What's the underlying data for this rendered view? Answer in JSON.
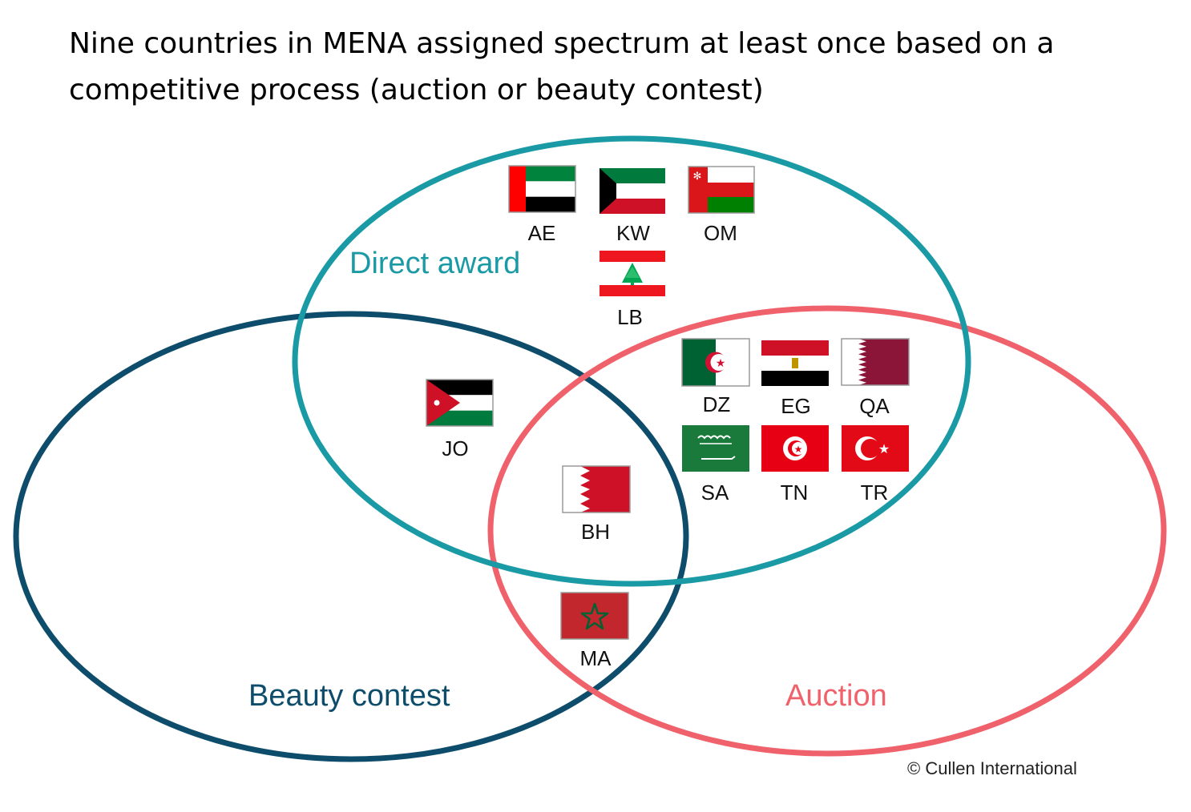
{
  "title": {
    "line1": "Nine countries in MENA assigned spectrum at least once based on a",
    "line2": "competitive process (auction or beauty contest)"
  },
  "sets": {
    "direct_award": {
      "label": "Direct award",
      "color": "#1a9aa5"
    },
    "beauty_contest": {
      "label": "Beauty contest",
      "color": "#0d4d6b"
    },
    "auction": {
      "label": "Auction",
      "color": "#f0626b"
    }
  },
  "countries": {
    "AE": {
      "code": "AE",
      "sets": [
        "Direct award"
      ]
    },
    "KW": {
      "code": "KW",
      "sets": [
        "Direct award"
      ]
    },
    "OM": {
      "code": "OM",
      "sets": [
        "Direct award"
      ]
    },
    "LB": {
      "code": "LB",
      "sets": [
        "Direct award"
      ]
    },
    "JO": {
      "code": "JO",
      "sets": [
        "Direct award",
        "Beauty contest"
      ]
    },
    "BH": {
      "code": "BH",
      "sets": [
        "Direct award",
        "Beauty contest",
        "Auction"
      ]
    },
    "DZ": {
      "code": "DZ",
      "sets": [
        "Direct award",
        "Auction"
      ]
    },
    "EG": {
      "code": "EG",
      "sets": [
        "Direct award",
        "Auction"
      ]
    },
    "QA": {
      "code": "QA",
      "sets": [
        "Direct award",
        "Auction"
      ]
    },
    "SA": {
      "code": "SA",
      "sets": [
        "Direct award",
        "Auction"
      ]
    },
    "TN": {
      "code": "TN",
      "sets": [
        "Direct award",
        "Auction"
      ]
    },
    "TR": {
      "code": "TR",
      "sets": [
        "Direct award",
        "Auction"
      ]
    },
    "MA": {
      "code": "MA",
      "sets": [
        "Beauty contest",
        "Auction"
      ]
    }
  },
  "credit": "© Cullen International"
}
